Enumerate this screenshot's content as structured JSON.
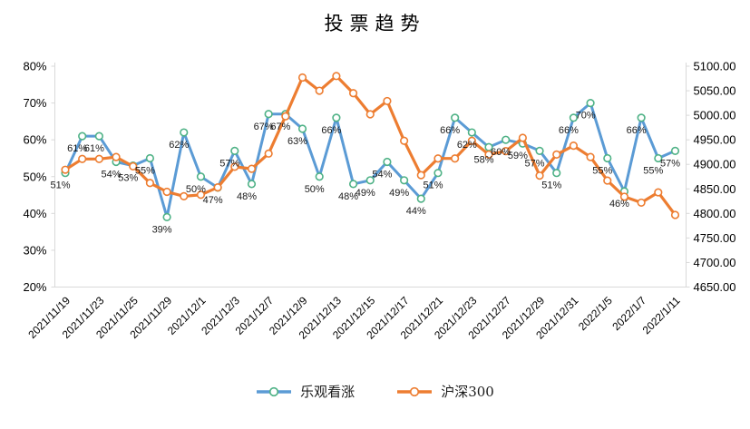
{
  "title": "投票趋势",
  "colors": {
    "bullish_line": "#5B9BD5",
    "bullish_marker_ring": "#4FB286",
    "index_line": "#ED7D31",
    "index_marker_ring": "#ED7D31",
    "axis_line": "#D9D9D9",
    "axis_text": "#000000",
    "point_label_text": "#1A1A1A",
    "background": "#FFFFFF"
  },
  "legend": {
    "items": [
      {
        "label": "乐观看涨"
      },
      {
        "label": "沪深300"
      }
    ]
  },
  "chart_data": {
    "type": "line",
    "title": "投票趋势",
    "grid": false,
    "legend_position": "bottom",
    "x_tick_labels": [
      "2021/11/19",
      "2021/11/23",
      "2021/11/25",
      "2021/11/29",
      "2021/12/1",
      "2021/12/3",
      "2021/12/7",
      "2021/12/9",
      "2021/12/13",
      "2021/12/15",
      "2021/12/17",
      "2021/12/21",
      "2021/12/23",
      "2021/12/27",
      "2021/12/29",
      "2021/12/31",
      "2022/1/5",
      "2022/1/7",
      "2022/1/11"
    ],
    "tick_every": 2,
    "num_points": 37,
    "left_axis": {
      "min": 20,
      "max": 80,
      "unit": "%",
      "tick_labels": [
        "80%",
        "70%",
        "60%",
        "50%",
        "40%",
        "30%",
        "20%"
      ]
    },
    "right_axis": {
      "min": 4650,
      "max": 5100,
      "tick_labels": [
        "5100.00",
        "5050.00",
        "5000.00",
        "4950.00",
        "4900.00",
        "4850.00",
        "4800.00",
        "4750.00",
        "4700.00",
        "4650.00"
      ]
    },
    "series": [
      {
        "name": "乐观看涨",
        "axis": "left",
        "unit": "%",
        "values": [
          51,
          61,
          61,
          54,
          53,
          55,
          39,
          62,
          50,
          47,
          57,
          48,
          67,
          67,
          63,
          50,
          66,
          48,
          49,
          54,
          49,
          44,
          51,
          66,
          62,
          58,
          60,
          59,
          57,
          51,
          66,
          70,
          55,
          46,
          66,
          55,
          57
        ],
        "point_labels": [
          "51%",
          "61%",
          "61%",
          "54%",
          "53%",
          "55%",
          "39%",
          "62%",
          "50%",
          "47%",
          "57%",
          "48%",
          "67%",
          "67%",
          "63%",
          "50%",
          "66%",
          "48%",
          "49%",
          "54%",
          "49%",
          "44%",
          "51%",
          "66%",
          "62%",
          "58%",
          "60%",
          "59%",
          "57%",
          "51%",
          "66%",
          "70%",
          "55%",
          "46%",
          "66%",
          "55%",
          "57%"
        ]
      },
      {
        "name": "沪深300",
        "axis": "right",
        "values": [
          4889,
          4911,
          4911,
          4915,
          4896,
          4862,
          4844,
          4835,
          4838,
          4853,
          4895,
          4891,
          4922,
          4998,
          5077,
          5050,
          5080,
          5045,
          5002,
          5029,
          4948,
          4878,
          4912,
          4912,
          4948,
          4920,
          4927,
          4954,
          4877,
          4920,
          4938,
          4915,
          4867,
          4834,
          4822,
          4843,
          4797
        ]
      }
    ]
  }
}
